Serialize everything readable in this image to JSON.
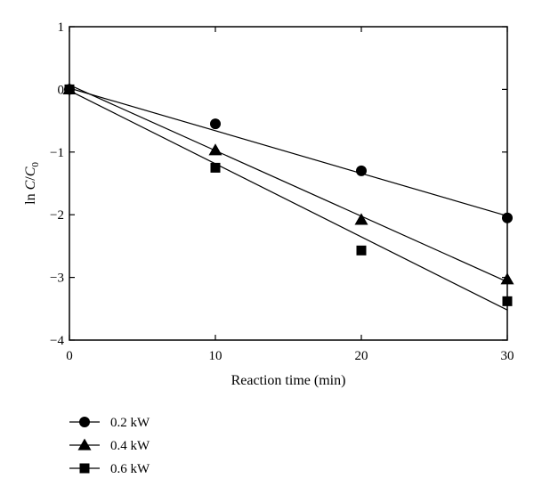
{
  "chart_data": {
    "type": "scatter",
    "xlabel": "Reaction time (min)",
    "ylabel": {
      "prefix": "ln ",
      "C": "C",
      "slash": "/",
      "C0": "C",
      "sub": "0"
    },
    "xlim": [
      0,
      30
    ],
    "ylim": [
      -4,
      1
    ],
    "xticks": [
      0,
      10,
      20,
      30
    ],
    "yticks": [
      1,
      0,
      -1,
      -2,
      -3,
      -4
    ],
    "xtick_labels": [
      "0",
      "10",
      "20",
      "30"
    ],
    "ytick_labels": [
      "1",
      "0",
      "−1",
      "−2",
      "−3",
      "−4"
    ],
    "grid": false,
    "legend_position": "bottom-left, below plot",
    "series": [
      {
        "name": "0.2 kW",
        "marker": "circle",
        "points": [
          [
            0,
            0.0
          ],
          [
            10,
            -0.55
          ],
          [
            20,
            -1.3
          ],
          [
            30,
            -2.05
          ]
        ],
        "fit": [
          [
            0,
            0.02
          ],
          [
            30,
            -2.02
          ]
        ]
      },
      {
        "name": "0.4 kW",
        "marker": "triangle",
        "points": [
          [
            0,
            0.0
          ],
          [
            10,
            -0.97
          ],
          [
            20,
            -2.08
          ],
          [
            30,
            -3.03
          ]
        ],
        "fit": [
          [
            0,
            0.07
          ],
          [
            30,
            -3.07
          ]
        ]
      },
      {
        "name": "0.6 kW",
        "marker": "square",
        "points": [
          [
            0,
            0.0
          ],
          [
            10,
            -1.25
          ],
          [
            20,
            -2.57
          ],
          [
            30,
            -3.38
          ]
        ],
        "fit": [
          [
            0,
            -0.02
          ],
          [
            30,
            -3.52
          ]
        ]
      }
    ]
  }
}
